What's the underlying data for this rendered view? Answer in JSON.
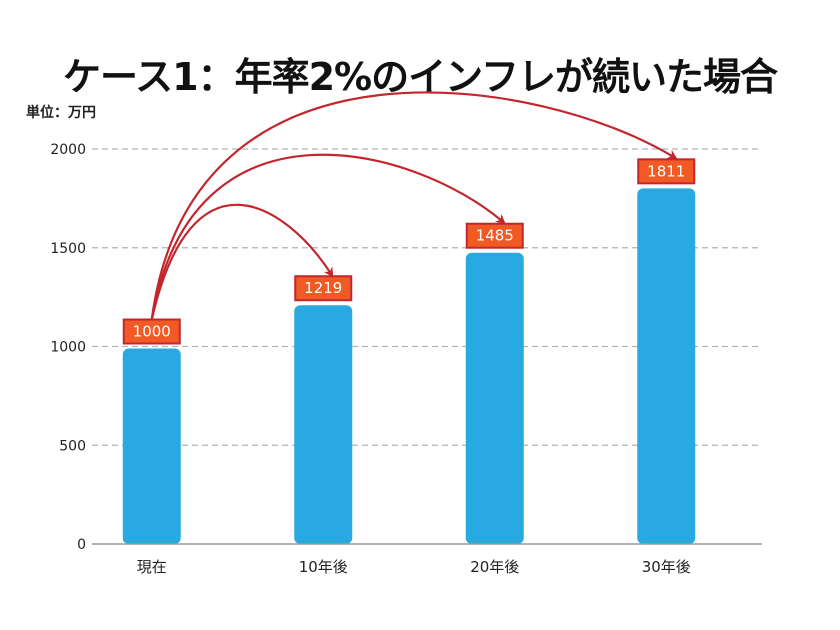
{
  "chart_data": {
    "type": "bar",
    "title": "ケース1：年率2%のインフレが続いた場合",
    "unit_label": "単位：万円",
    "xlabel": "",
    "ylabel": "",
    "categories": [
      "現在",
      "10年後",
      "20年後",
      "30年後"
    ],
    "values": [
      1000,
      1219,
      1485,
      1811
    ],
    "data_labels": [
      "1000",
      "1219",
      "1485",
      "1811"
    ],
    "ylim": [
      0,
      2000
    ],
    "yticks": [
      0,
      500,
      1000,
      1500,
      2000
    ],
    "ytick_labels": [
      "0",
      "500",
      "1000",
      "1500",
      "2000"
    ],
    "grid": "horizontal-dashed",
    "legend": "none",
    "annotations": [
      {
        "type": "arrow",
        "from": "現在",
        "to": "10年後"
      },
      {
        "type": "arrow",
        "from": "現在",
        "to": "20年後"
      },
      {
        "type": "arrow",
        "from": "現在",
        "to": "30年後"
      }
    ],
    "colors": {
      "bar": "#29a9e1",
      "label_fill": "#f15a24",
      "label_border": "#c1272d",
      "arrow": "#c1272d",
      "grid": "#b3b3b3",
      "axis": "#999999"
    }
  }
}
